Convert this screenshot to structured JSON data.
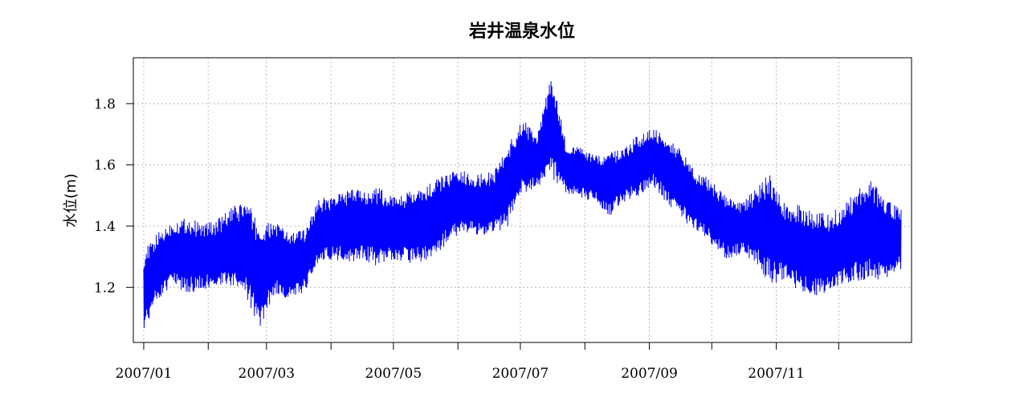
{
  "chart_data": {
    "type": "line",
    "title": "岩井温泉水位",
    "xlabel": "",
    "ylabel": "水位(m)",
    "x_tick_labels": [
      "2007/01",
      "2007/03",
      "2007/05",
      "2007/07",
      "2007/09",
      "2007/11"
    ],
    "x_ticks": [
      "2007-01-01",
      "2007-02-01",
      "2007-03-01",
      "2007-04-01",
      "2007-05-01",
      "2007-06-01",
      "2007-07-01",
      "2007-08-01",
      "2007-09-01",
      "2007-10-01",
      "2007-11-01",
      "2007-12-01"
    ],
    "xlim": [
      "2006-12-27",
      "2008-01-05"
    ],
    "ylim": [
      1.02,
      1.95
    ],
    "y_ticks": [
      1.2,
      1.4,
      1.6,
      1.8
    ],
    "y_tick_labels": [
      "1.2",
      "1.4",
      "1.6",
      "1.8"
    ],
    "grid": true,
    "series": [
      {
        "color": "#0000ff",
        "x": [
          "2007-01-01",
          "2007-01-08",
          "2007-01-15",
          "2007-01-22",
          "2007-01-29",
          "2007-02-05",
          "2007-02-12",
          "2007-02-19",
          "2007-02-26",
          "2007-03-05",
          "2007-03-12",
          "2007-03-19",
          "2007-03-26",
          "2007-04-02",
          "2007-04-09",
          "2007-04-16",
          "2007-04-23",
          "2007-04-30",
          "2007-05-07",
          "2007-05-14",
          "2007-05-21",
          "2007-05-28",
          "2007-06-04",
          "2007-06-11",
          "2007-06-18",
          "2007-06-25",
          "2007-07-02",
          "2007-07-09",
          "2007-07-16",
          "2007-07-23",
          "2007-07-30",
          "2007-08-06",
          "2007-08-13",
          "2007-08-20",
          "2007-08-27",
          "2007-09-03",
          "2007-09-10",
          "2007-09-17",
          "2007-09-24",
          "2007-10-01",
          "2007-10-08",
          "2007-10-15",
          "2007-10-22",
          "2007-10-29",
          "2007-11-05",
          "2007-11-12",
          "2007-11-19",
          "2007-11-26",
          "2007-12-03",
          "2007-12-10",
          "2007-12-17",
          "2007-12-24",
          "2007-12-31"
        ],
        "min": [
          1.06,
          1.16,
          1.2,
          1.18,
          1.19,
          1.2,
          1.2,
          1.17,
          1.06,
          1.18,
          1.16,
          1.18,
          1.28,
          1.29,
          1.28,
          1.29,
          1.27,
          1.29,
          1.28,
          1.28,
          1.3,
          1.35,
          1.38,
          1.37,
          1.37,
          1.4,
          1.5,
          1.53,
          1.56,
          1.5,
          1.49,
          1.48,
          1.43,
          1.48,
          1.5,
          1.53,
          1.47,
          1.42,
          1.38,
          1.34,
          1.29,
          1.31,
          1.28,
          1.21,
          1.22,
          1.19,
          1.17,
          1.18,
          1.2,
          1.22,
          1.23,
          1.22,
          1.26
        ],
        "max": [
          1.32,
          1.38,
          1.42,
          1.43,
          1.41,
          1.42,
          1.46,
          1.49,
          1.4,
          1.42,
          1.38,
          1.39,
          1.49,
          1.5,
          1.52,
          1.52,
          1.53,
          1.5,
          1.51,
          1.52,
          1.55,
          1.58,
          1.58,
          1.57,
          1.58,
          1.67,
          1.75,
          1.7,
          1.9,
          1.67,
          1.66,
          1.63,
          1.64,
          1.66,
          1.7,
          1.72,
          1.7,
          1.64,
          1.58,
          1.55,
          1.5,
          1.48,
          1.52,
          1.58,
          1.48,
          1.47,
          1.45,
          1.44,
          1.47,
          1.52,
          1.55,
          1.49,
          1.46
        ]
      }
    ]
  }
}
